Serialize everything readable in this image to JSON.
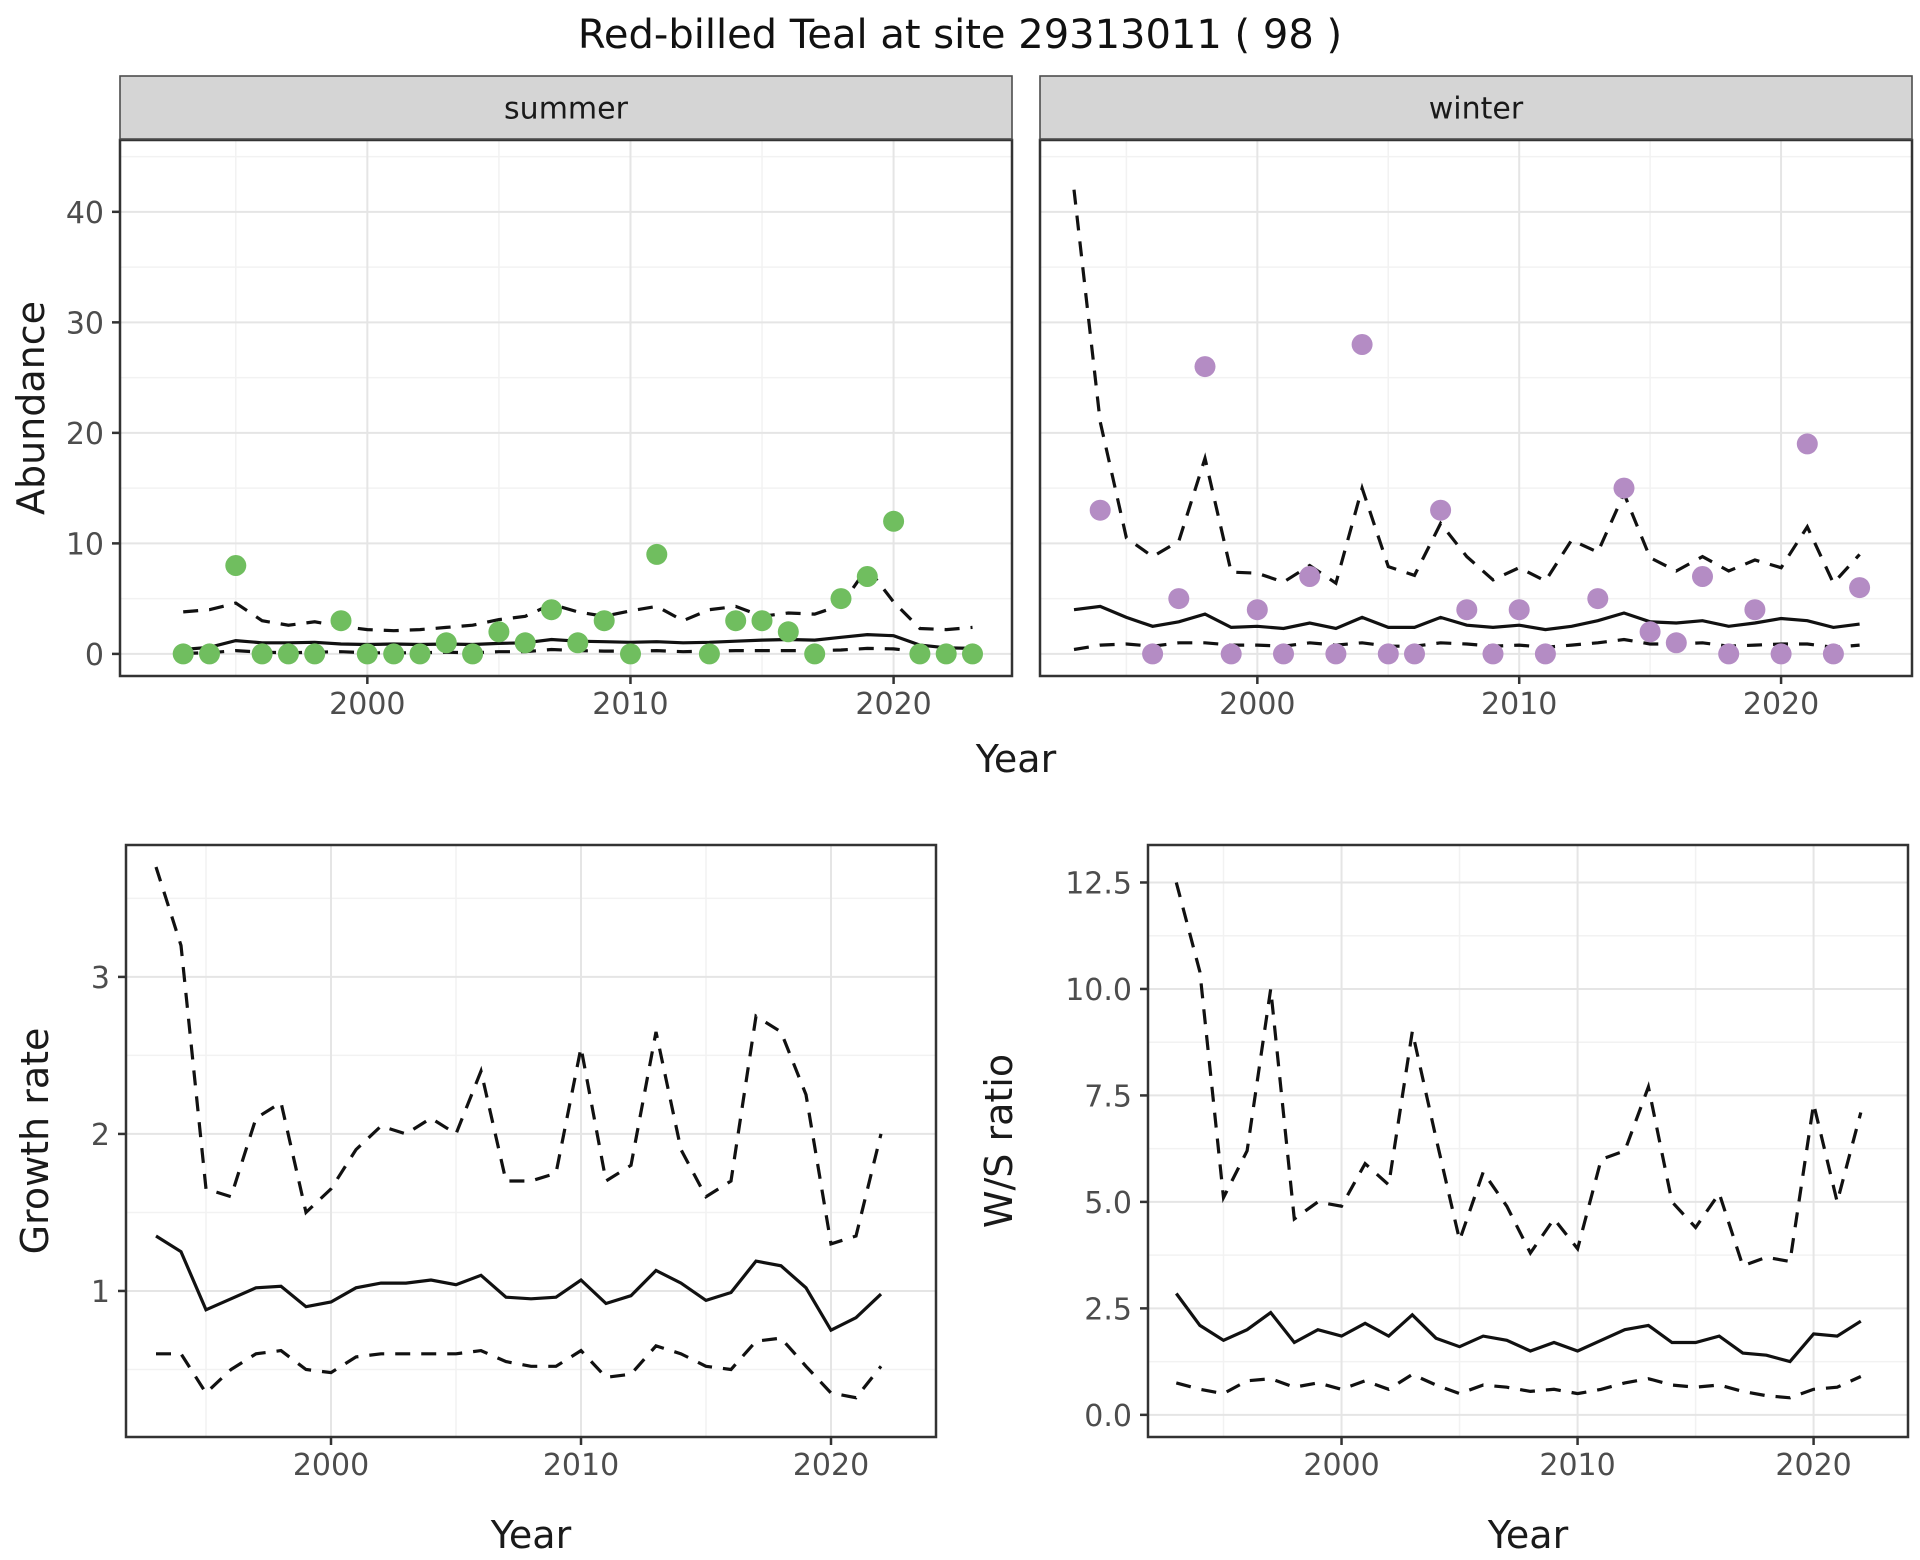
{
  "title": "Red-billed Teal at site 29313011 ( 98 )",
  "colors": {
    "summer_point": "#70BE5F",
    "winter_point": "#B48CC4",
    "line": "#111111",
    "tick_label": "#4D4D4D",
    "axis_title": "#1A1A1A",
    "strip_fill": "#D5D5D5",
    "strip_border": "#4D4D4D",
    "panel_border": "#333333",
    "grid_major": "#E5E5E5",
    "grid_minor": "#F2F2F2",
    "background": "#FFFFFF"
  },
  "chart_data": [
    {
      "id": "abundance",
      "type": "scatter",
      "title": "",
      "xlabel": "Year",
      "ylabel": "Abundance",
      "x_ticks": [
        2000,
        2010,
        2020
      ],
      "x_tick_labels": [
        "2000",
        "2010",
        "2020"
      ],
      "x_minor_ticks": [
        1995,
        2005,
        2015
      ],
      "y_ticks": [
        0,
        10,
        20,
        30,
        40
      ],
      "y_tick_labels": [
        "0",
        "10",
        "20",
        "30",
        "40"
      ],
      "y_minor_ticks": [
        5,
        15,
        25,
        35,
        45
      ],
      "xlim": [
        1990.6,
        2024.5
      ],
      "ylim": [
        -2,
        46.5
      ],
      "grid": true,
      "legend": "none",
      "years": [
        1993,
        1994,
        1995,
        1996,
        1997,
        1998,
        1999,
        2000,
        2001,
        2002,
        2003,
        2004,
        2005,
        2006,
        2007,
        2008,
        2009,
        2010,
        2011,
        2012,
        2013,
        2014,
        2015,
        2016,
        2017,
        2018,
        2019,
        2020,
        2021,
        2022,
        2023
      ],
      "facets": [
        {
          "label": "summer",
          "point_color": "#70BE5F",
          "xlim": [
            1990.6,
            2024.5
          ],
          "observations": [
            [
              1993,
              0
            ],
            [
              1994,
              0
            ],
            [
              1995,
              8
            ],
            [
              1996,
              0
            ],
            [
              1997,
              0
            ],
            [
              1998,
              0
            ],
            [
              1999,
              3
            ],
            [
              2000,
              0
            ],
            [
              2001,
              0
            ],
            [
              2002,
              0
            ],
            [
              2003,
              1
            ],
            [
              2004,
              0
            ],
            [
              2005,
              2
            ],
            [
              2006,
              1
            ],
            [
              2007,
              4
            ],
            [
              2008,
              1
            ],
            [
              2009,
              3
            ],
            [
              2010,
              0
            ],
            [
              2011,
              9
            ],
            [
              2013,
              0
            ],
            [
              2014,
              3
            ],
            [
              2015,
              3
            ],
            [
              2016,
              2
            ],
            [
              2017,
              0
            ],
            [
              2018,
              5
            ],
            [
              2019,
              7
            ],
            [
              2020,
              12
            ],
            [
              2021,
              0
            ],
            [
              2022,
              0
            ],
            [
              2023,
              0
            ]
          ],
          "mean": [
            0.4,
            0.6,
            1.2,
            1.0,
            1.0,
            1.05,
            0.9,
            0.85,
            0.9,
            0.85,
            0.9,
            0.85,
            0.95,
            1.0,
            1.3,
            1.15,
            1.1,
            1.05,
            1.1,
            1.0,
            1.05,
            1.15,
            1.25,
            1.3,
            1.25,
            1.5,
            1.75,
            1.65,
            0.8,
            0.55,
            0.5
          ],
          "ci_upper": [
            3.8,
            4.0,
            4.6,
            3.0,
            2.6,
            2.9,
            2.5,
            2.2,
            2.1,
            2.2,
            2.4,
            2.6,
            3.1,
            3.4,
            4.5,
            3.8,
            3.4,
            3.9,
            4.3,
            3.0,
            4.0,
            4.3,
            3.4,
            3.7,
            3.6,
            4.4,
            7.8,
            4.7,
            2.3,
            2.2,
            2.4
          ],
          "ci_lower": [
            0.05,
            0.1,
            0.3,
            0.15,
            0.1,
            0.15,
            0.2,
            0.1,
            0.1,
            0.1,
            0.15,
            0.1,
            0.2,
            0.2,
            0.4,
            0.3,
            0.25,
            0.25,
            0.3,
            0.2,
            0.25,
            0.3,
            0.3,
            0.3,
            0.3,
            0.35,
            0.5,
            0.45,
            0.2,
            0.1,
            0.1
          ]
        },
        {
          "label": "winter",
          "point_color": "#B48CC4",
          "xlim": [
            1991.7,
            2025.0
          ],
          "observations": [
            [
              1994,
              13
            ],
            [
              1996,
              0
            ],
            [
              1997,
              5
            ],
            [
              1998,
              26
            ],
            [
              1999,
              0
            ],
            [
              2000,
              4
            ],
            [
              2001,
              0
            ],
            [
              2002,
              7
            ],
            [
              2003,
              0
            ],
            [
              2004,
              28
            ],
            [
              2005,
              0
            ],
            [
              2006,
              0
            ],
            [
              2007,
              13
            ],
            [
              2008,
              4
            ],
            [
              2009,
              0
            ],
            [
              2010,
              4
            ],
            [
              2011,
              0
            ],
            [
              2013,
              5
            ],
            [
              2014,
              15
            ],
            [
              2015,
              2
            ],
            [
              2016,
              1
            ],
            [
              2017,
              7
            ],
            [
              2018,
              0
            ],
            [
              2019,
              4
            ],
            [
              2020,
              0
            ],
            [
              2021,
              19
            ],
            [
              2022,
              0
            ],
            [
              2023,
              6
            ]
          ],
          "mean": [
            4.0,
            4.3,
            3.3,
            2.5,
            2.9,
            3.6,
            2.4,
            2.5,
            2.3,
            2.8,
            2.3,
            3.3,
            2.4,
            2.4,
            3.3,
            2.6,
            2.4,
            2.6,
            2.2,
            2.5,
            3.0,
            3.7,
            2.9,
            2.8,
            3.0,
            2.5,
            2.8,
            3.2,
            3.0,
            2.4,
            2.7
          ],
          "ci_upper": [
            42,
            21,
            10.5,
            8.8,
            10.2,
            17.7,
            7.4,
            7.3,
            6.5,
            8.0,
            6.4,
            15.0,
            7.9,
            7.1,
            11.8,
            8.8,
            6.7,
            7.8,
            6.6,
            10.3,
            9.2,
            14.5,
            8.7,
            7.5,
            8.8,
            7.5,
            8.5,
            7.8,
            11.5,
            6.4,
            9.0
          ],
          "ci_lower": [
            0.4,
            0.8,
            0.9,
            0.7,
            1.0,
            1.0,
            0.8,
            0.8,
            0.7,
            1.0,
            0.8,
            1.0,
            0.7,
            0.7,
            1.0,
            0.9,
            0.7,
            0.8,
            0.6,
            0.8,
            1.0,
            1.3,
            0.9,
            0.9,
            1.0,
            0.7,
            0.8,
            0.9,
            0.9,
            0.6,
            0.8
          ]
        }
      ]
    },
    {
      "id": "growth_rate",
      "type": "line",
      "title": "",
      "xlabel": "Year",
      "ylabel": "Growth rate",
      "x_ticks": [
        2000,
        2010,
        2020
      ],
      "x_tick_labels": [
        "2000",
        "2010",
        "2020"
      ],
      "x_minor_ticks": [
        1995,
        2005,
        2015
      ],
      "y_ticks": [
        1,
        2,
        3
      ],
      "y_tick_labels": [
        "1",
        "2",
        "3"
      ],
      "y_minor_ticks": [
        0.5,
        1.5,
        2.5,
        3.5
      ],
      "xlim": [
        1991.8,
        2024.2
      ],
      "ylim": [
        0.07,
        3.84
      ],
      "grid": true,
      "legend": "none",
      "years": [
        1993,
        1994,
        1995,
        1996,
        1997,
        1998,
        1999,
        2000,
        2001,
        2002,
        2003,
        2004,
        2005,
        2006,
        2007,
        2008,
        2009,
        2010,
        2011,
        2012,
        2013,
        2014,
        2015,
        2016,
        2017,
        2018,
        2019,
        2020,
        2021,
        2022
      ],
      "mean": [
        1.35,
        1.25,
        0.88,
        0.95,
        1.02,
        1.03,
        0.9,
        0.93,
        1.02,
        1.05,
        1.05,
        1.07,
        1.04,
        1.1,
        0.96,
        0.95,
        0.96,
        1.07,
        0.92,
        0.97,
        1.13,
        1.05,
        0.94,
        0.99,
        1.19,
        1.16,
        1.02,
        0.75,
        0.83,
        0.98
      ],
      "ci_upper": [
        3.7,
        3.2,
        1.65,
        1.6,
        2.1,
        2.2,
        1.5,
        1.65,
        1.9,
        2.05,
        2.0,
        2.1,
        2.0,
        2.4,
        1.7,
        1.7,
        1.75,
        2.55,
        1.7,
        1.8,
        2.65,
        1.9,
        1.6,
        1.7,
        2.75,
        2.65,
        2.25,
        1.3,
        1.35,
        2.0
      ],
      "ci_lower": [
        0.6,
        0.6,
        0.35,
        0.5,
        0.6,
        0.62,
        0.5,
        0.48,
        0.58,
        0.6,
        0.6,
        0.6,
        0.6,
        0.62,
        0.55,
        0.52,
        0.52,
        0.62,
        0.45,
        0.47,
        0.65,
        0.6,
        0.52,
        0.5,
        0.68,
        0.7,
        0.52,
        0.35,
        0.32,
        0.52
      ]
    },
    {
      "id": "ws_ratio",
      "type": "line",
      "title": "",
      "xlabel": "Year",
      "ylabel": "W/S ratio",
      "x_ticks": [
        2000,
        2010,
        2020
      ],
      "x_tick_labels": [
        "2000",
        "2010",
        "2020"
      ],
      "x_minor_ticks": [
        1995,
        2005,
        2015
      ],
      "y_ticks": [
        0,
        2.5,
        5,
        7.5,
        10,
        12.5
      ],
      "y_tick_labels": [
        "0.0",
        "2.5",
        "5.0",
        "7.5",
        "10.0",
        "12.5"
      ],
      "y_minor_ticks": [
        1.25,
        3.75,
        6.25,
        8.75,
        11.25
      ],
      "xlim": [
        1991.8,
        2024.0
      ],
      "ylim": [
        -0.52,
        13.38
      ],
      "grid": true,
      "legend": "none",
      "years": [
        1993,
        1994,
        1995,
        1996,
        1997,
        1998,
        1999,
        2000,
        2001,
        2002,
        2003,
        2004,
        2005,
        2006,
        2007,
        2008,
        2009,
        2010,
        2011,
        2012,
        2013,
        2014,
        2015,
        2016,
        2017,
        2018,
        2019,
        2020,
        2021,
        2022
      ],
      "mean": [
        2.85,
        2.1,
        1.75,
        2.0,
        2.4,
        1.7,
        2.0,
        1.85,
        2.15,
        1.85,
        2.35,
        1.8,
        1.6,
        1.85,
        1.75,
        1.5,
        1.7,
        1.5,
        1.75,
        2.0,
        2.1,
        1.7,
        1.7,
        1.85,
        1.45,
        1.4,
        1.25,
        1.9,
        1.85,
        2.2
      ],
      "ci_upper": [
        12.5,
        10.4,
        5.1,
        6.2,
        10.0,
        4.6,
        5.0,
        4.9,
        5.9,
        5.4,
        9.0,
        6.5,
        4.1,
        5.7,
        4.9,
        3.8,
        4.6,
        3.9,
        6.0,
        6.2,
        7.7,
        5.0,
        4.4,
        5.2,
        3.5,
        3.7,
        3.6,
        7.3,
        5.0,
        7.1
      ],
      "mean_note": "solid line = model estimate, dashed lines = 95% CI",
      "ci_lower": [
        0.75,
        0.6,
        0.5,
        0.8,
        0.85,
        0.65,
        0.75,
        0.6,
        0.8,
        0.6,
        0.95,
        0.7,
        0.5,
        0.7,
        0.65,
        0.55,
        0.6,
        0.5,
        0.6,
        0.75,
        0.85,
        0.7,
        0.65,
        0.7,
        0.55,
        0.45,
        0.4,
        0.6,
        0.65,
        0.9
      ]
    }
  ]
}
